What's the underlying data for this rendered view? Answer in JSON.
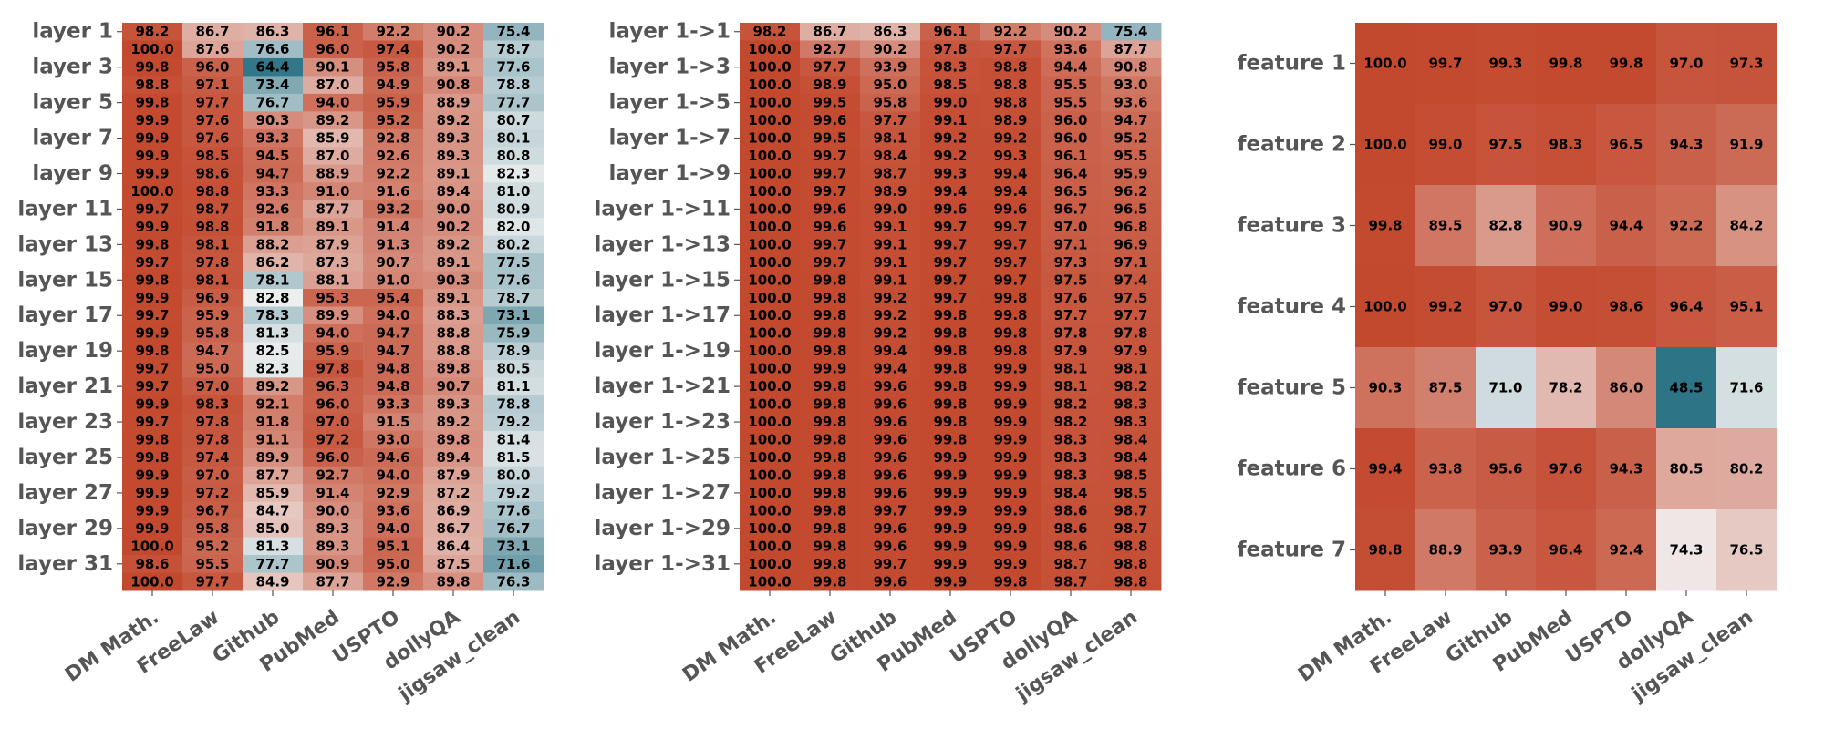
{
  "colors": {
    "high": "#c3492e",
    "mid": "#f2f2f2",
    "low": "#2e7487",
    "text": "#000000",
    "axis_text": "#555555"
  },
  "chart_data": [
    {
      "type": "heatmap",
      "title": "",
      "columns": [
        "DM Math.",
        "FreeLaw",
        "Github",
        "PubMed",
        "USPTO",
        "dollyQA",
        "jigsaw_clean"
      ],
      "row_labels": [
        "layer 1",
        "layer 3",
        "layer 5",
        "layer 7",
        "layer 9",
        "layer 11",
        "layer 13",
        "layer 15",
        "layer 17",
        "layer 19",
        "layer 21",
        "layer 23",
        "layer 25",
        "layer 27",
        "layer 29",
        "layer 31"
      ],
      "row_count": 32,
      "values": [
        [
          98.2,
          86.7,
          86.3,
          96.1,
          92.2,
          90.2,
          75.4
        ],
        [
          100.0,
          87.6,
          76.6,
          96.0,
          97.4,
          90.2,
          78.7
        ],
        [
          99.8,
          96.0,
          64.4,
          90.1,
          95.8,
          89.1,
          77.6
        ],
        [
          98.8,
          97.1,
          73.4,
          87.0,
          94.9,
          90.8,
          78.8
        ],
        [
          99.8,
          97.7,
          76.7,
          94.0,
          95.9,
          88.9,
          77.7
        ],
        [
          99.9,
          97.6,
          90.3,
          89.2,
          95.2,
          89.2,
          80.7
        ],
        [
          99.9,
          97.6,
          93.3,
          85.9,
          92.8,
          89.3,
          80.1
        ],
        [
          99.9,
          98.5,
          94.5,
          87.0,
          92.6,
          89.3,
          80.8
        ],
        [
          99.9,
          98.6,
          94.7,
          88.9,
          92.2,
          89.1,
          82.3
        ],
        [
          100.0,
          98.8,
          93.3,
          91.0,
          91.6,
          89.4,
          81.0
        ],
        [
          99.7,
          98.7,
          92.6,
          87.7,
          93.2,
          90.0,
          80.9
        ],
        [
          99.9,
          98.8,
          91.8,
          89.1,
          91.4,
          90.2,
          82.0
        ],
        [
          99.8,
          98.1,
          88.2,
          87.9,
          91.3,
          89.2,
          80.2
        ],
        [
          99.7,
          97.8,
          86.2,
          87.3,
          90.7,
          89.1,
          77.5
        ],
        [
          99.8,
          98.1,
          78.1,
          88.1,
          91.0,
          90.3,
          77.6
        ],
        [
          99.9,
          96.9,
          82.8,
          95.3,
          95.4,
          89.1,
          78.7
        ],
        [
          99.7,
          95.9,
          78.3,
          89.9,
          94.0,
          88.3,
          73.1
        ],
        [
          99.9,
          95.8,
          81.3,
          94.0,
          94.7,
          88.8,
          75.9
        ],
        [
          99.8,
          94.7,
          82.5,
          95.9,
          94.7,
          88.8,
          78.9
        ],
        [
          99.7,
          95.0,
          82.3,
          97.8,
          94.8,
          89.8,
          80.5
        ],
        [
          99.7,
          97.0,
          89.2,
          96.3,
          94.8,
          90.7,
          81.1
        ],
        [
          99.9,
          98.3,
          92.1,
          96.0,
          93.3,
          89.3,
          78.8
        ],
        [
          99.7,
          97.8,
          91.8,
          97.0,
          91.5,
          89.2,
          79.2
        ],
        [
          99.8,
          97.8,
          91.1,
          97.2,
          93.0,
          89.8,
          81.4
        ],
        [
          99.8,
          97.4,
          89.9,
          96.0,
          94.6,
          89.4,
          81.5
        ],
        [
          99.9,
          97.0,
          87.7,
          92.7,
          94.0,
          87.9,
          80.0
        ],
        [
          99.9,
          97.2,
          85.9,
          91.4,
          92.9,
          87.2,
          79.2
        ],
        [
          99.9,
          96.7,
          84.7,
          90.0,
          93.6,
          86.9,
          77.6
        ],
        [
          99.9,
          95.8,
          85.0,
          89.3,
          94.0,
          86.7,
          76.7
        ],
        [
          100.0,
          95.2,
          81.3,
          89.3,
          95.1,
          86.4,
          73.1
        ],
        [
          98.6,
          95.5,
          77.7,
          90.9,
          95.0,
          87.5,
          71.6
        ],
        [
          100.0,
          97.7,
          84.9,
          87.7,
          92.9,
          89.8,
          76.3
        ]
      ]
    },
    {
      "type": "heatmap",
      "title": "",
      "columns": [
        "DM Math.",
        "FreeLaw",
        "Github",
        "PubMed",
        "USPTO",
        "dollyQA",
        "jigsaw_clean"
      ],
      "row_labels": [
        "layer 1->1",
        "layer 1->3",
        "layer 1->5",
        "layer 1->7",
        "layer 1->9",
        "layer 1->11",
        "layer 1->13",
        "layer 1->15",
        "layer 1->17",
        "layer 1->19",
        "layer 1->21",
        "layer 1->23",
        "layer 1->25",
        "layer 1->27",
        "layer 1->29",
        "layer 1->31"
      ],
      "row_count": 32,
      "values": [
        [
          98.2,
          86.7,
          86.3,
          96.1,
          92.2,
          90.2,
          75.4
        ],
        [
          100.0,
          92.7,
          90.2,
          97.8,
          97.7,
          93.6,
          87.7
        ],
        [
          100.0,
          97.7,
          93.9,
          98.3,
          98.8,
          94.4,
          90.8
        ],
        [
          100.0,
          98.9,
          95.0,
          98.5,
          98.8,
          95.5,
          93.0
        ],
        [
          100.0,
          99.5,
          95.8,
          99.0,
          98.8,
          95.5,
          93.6
        ],
        [
          100.0,
          99.6,
          97.7,
          99.1,
          98.9,
          96.0,
          94.7
        ],
        [
          100.0,
          99.5,
          98.1,
          99.2,
          99.2,
          96.0,
          95.2
        ],
        [
          100.0,
          99.7,
          98.4,
          99.2,
          99.3,
          96.1,
          95.5
        ],
        [
          100.0,
          99.7,
          98.7,
          99.3,
          99.4,
          96.4,
          95.9
        ],
        [
          100.0,
          99.7,
          98.9,
          99.4,
          99.4,
          96.5,
          96.2
        ],
        [
          100.0,
          99.6,
          99.0,
          99.6,
          99.6,
          96.7,
          96.5
        ],
        [
          100.0,
          99.6,
          99.1,
          99.7,
          99.7,
          97.0,
          96.8
        ],
        [
          100.0,
          99.7,
          99.1,
          99.7,
          99.7,
          97.1,
          96.9
        ],
        [
          100.0,
          99.7,
          99.1,
          99.7,
          99.7,
          97.3,
          97.1
        ],
        [
          100.0,
          99.8,
          99.1,
          99.7,
          99.7,
          97.5,
          97.4
        ],
        [
          100.0,
          99.8,
          99.2,
          99.7,
          99.8,
          97.6,
          97.5
        ],
        [
          100.0,
          99.8,
          99.2,
          99.8,
          99.8,
          97.7,
          97.7
        ],
        [
          100.0,
          99.8,
          99.2,
          99.8,
          99.8,
          97.8,
          97.8
        ],
        [
          100.0,
          99.8,
          99.4,
          99.8,
          99.8,
          97.9,
          97.9
        ],
        [
          100.0,
          99.9,
          99.4,
          99.8,
          99.9,
          98.1,
          98.1
        ],
        [
          100.0,
          99.8,
          99.6,
          99.8,
          99.9,
          98.1,
          98.2
        ],
        [
          100.0,
          99.8,
          99.6,
          99.8,
          99.9,
          98.2,
          98.3
        ],
        [
          100.0,
          99.8,
          99.6,
          99.8,
          99.9,
          98.2,
          98.3
        ],
        [
          100.0,
          99.8,
          99.6,
          99.8,
          99.9,
          98.3,
          98.4
        ],
        [
          100.0,
          99.8,
          99.6,
          99.9,
          99.9,
          98.3,
          98.4
        ],
        [
          100.0,
          99.8,
          99.6,
          99.9,
          99.9,
          98.3,
          98.5
        ],
        [
          100.0,
          99.8,
          99.6,
          99.9,
          99.9,
          98.4,
          98.5
        ],
        [
          100.0,
          99.8,
          99.7,
          99.9,
          99.9,
          98.6,
          98.7
        ],
        [
          100.0,
          99.8,
          99.6,
          99.9,
          99.9,
          98.6,
          98.7
        ],
        [
          100.0,
          99.8,
          99.6,
          99.9,
          99.9,
          98.6,
          98.8
        ],
        [
          100.0,
          99.8,
          99.7,
          99.9,
          99.9,
          98.7,
          98.8
        ],
        [
          100.0,
          99.8,
          99.6,
          99.9,
          99.8,
          98.7,
          98.8
        ]
      ]
    },
    {
      "type": "heatmap",
      "title": "",
      "columns": [
        "DM Math.",
        "FreeLaw",
        "Github",
        "PubMed",
        "USPTO",
        "dollyQA",
        "jigsaw_clean"
      ],
      "row_labels": [
        "feature 1",
        "feature 2",
        "feature 3",
        "feature 4",
        "feature 5",
        "feature 6",
        "feature 7"
      ],
      "row_count": 7,
      "values": [
        [
          100.0,
          99.7,
          99.3,
          99.8,
          99.8,
          97.0,
          97.3
        ],
        [
          100.0,
          99.0,
          97.5,
          98.3,
          96.5,
          94.3,
          91.9
        ],
        [
          99.8,
          89.5,
          82.8,
          90.9,
          94.4,
          92.2,
          84.2
        ],
        [
          100.0,
          99.2,
          97.0,
          99.0,
          98.6,
          96.4,
          95.1
        ],
        [
          90.3,
          87.5,
          71.0,
          78.2,
          86.0,
          48.5,
          71.6
        ],
        [
          99.4,
          93.8,
          95.6,
          97.6,
          94.3,
          80.5,
          80.2
        ],
        [
          98.8,
          88.9,
          93.9,
          96.4,
          92.4,
          74.3,
          76.5
        ]
      ]
    }
  ]
}
